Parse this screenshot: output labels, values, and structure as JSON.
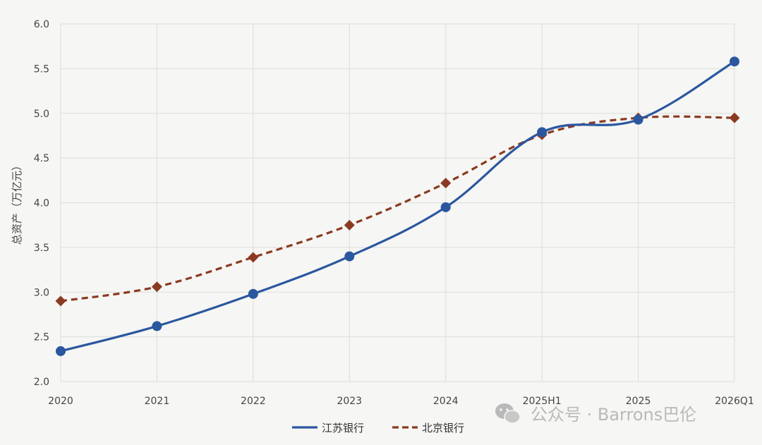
{
  "chart_data": {
    "type": "line",
    "title": "",
    "xlabel": "",
    "ylabel": "总资产（万亿元）",
    "categories": [
      "2020",
      "2021",
      "2022",
      "2023",
      "2024",
      "2025H1",
      "2025",
      "2026Q1"
    ],
    "ylim": [
      2.0,
      6.0
    ],
    "yticks": [
      2.0,
      2.5,
      3.0,
      3.5,
      4.0,
      4.5,
      5.0,
      5.5,
      6.0
    ],
    "grid": true,
    "legend_position": "bottom",
    "series": [
      {
        "name": "江苏银行",
        "values": [
          2.34,
          2.62,
          2.98,
          3.4,
          3.95,
          4.79,
          4.93,
          5.58
        ],
        "color": "#2b579f",
        "line_style": "solid",
        "marker": "circle"
      },
      {
        "name": "北京银行",
        "values": [
          2.9,
          3.06,
          3.39,
          3.75,
          4.22,
          4.76,
          4.95,
          4.95
        ],
        "color": "#8b3a22",
        "line_style": "dashed",
        "marker": "diamond"
      }
    ]
  },
  "watermark": {
    "text": "公众号 · Barrons巴伦",
    "icon": "wechat-icon"
  }
}
